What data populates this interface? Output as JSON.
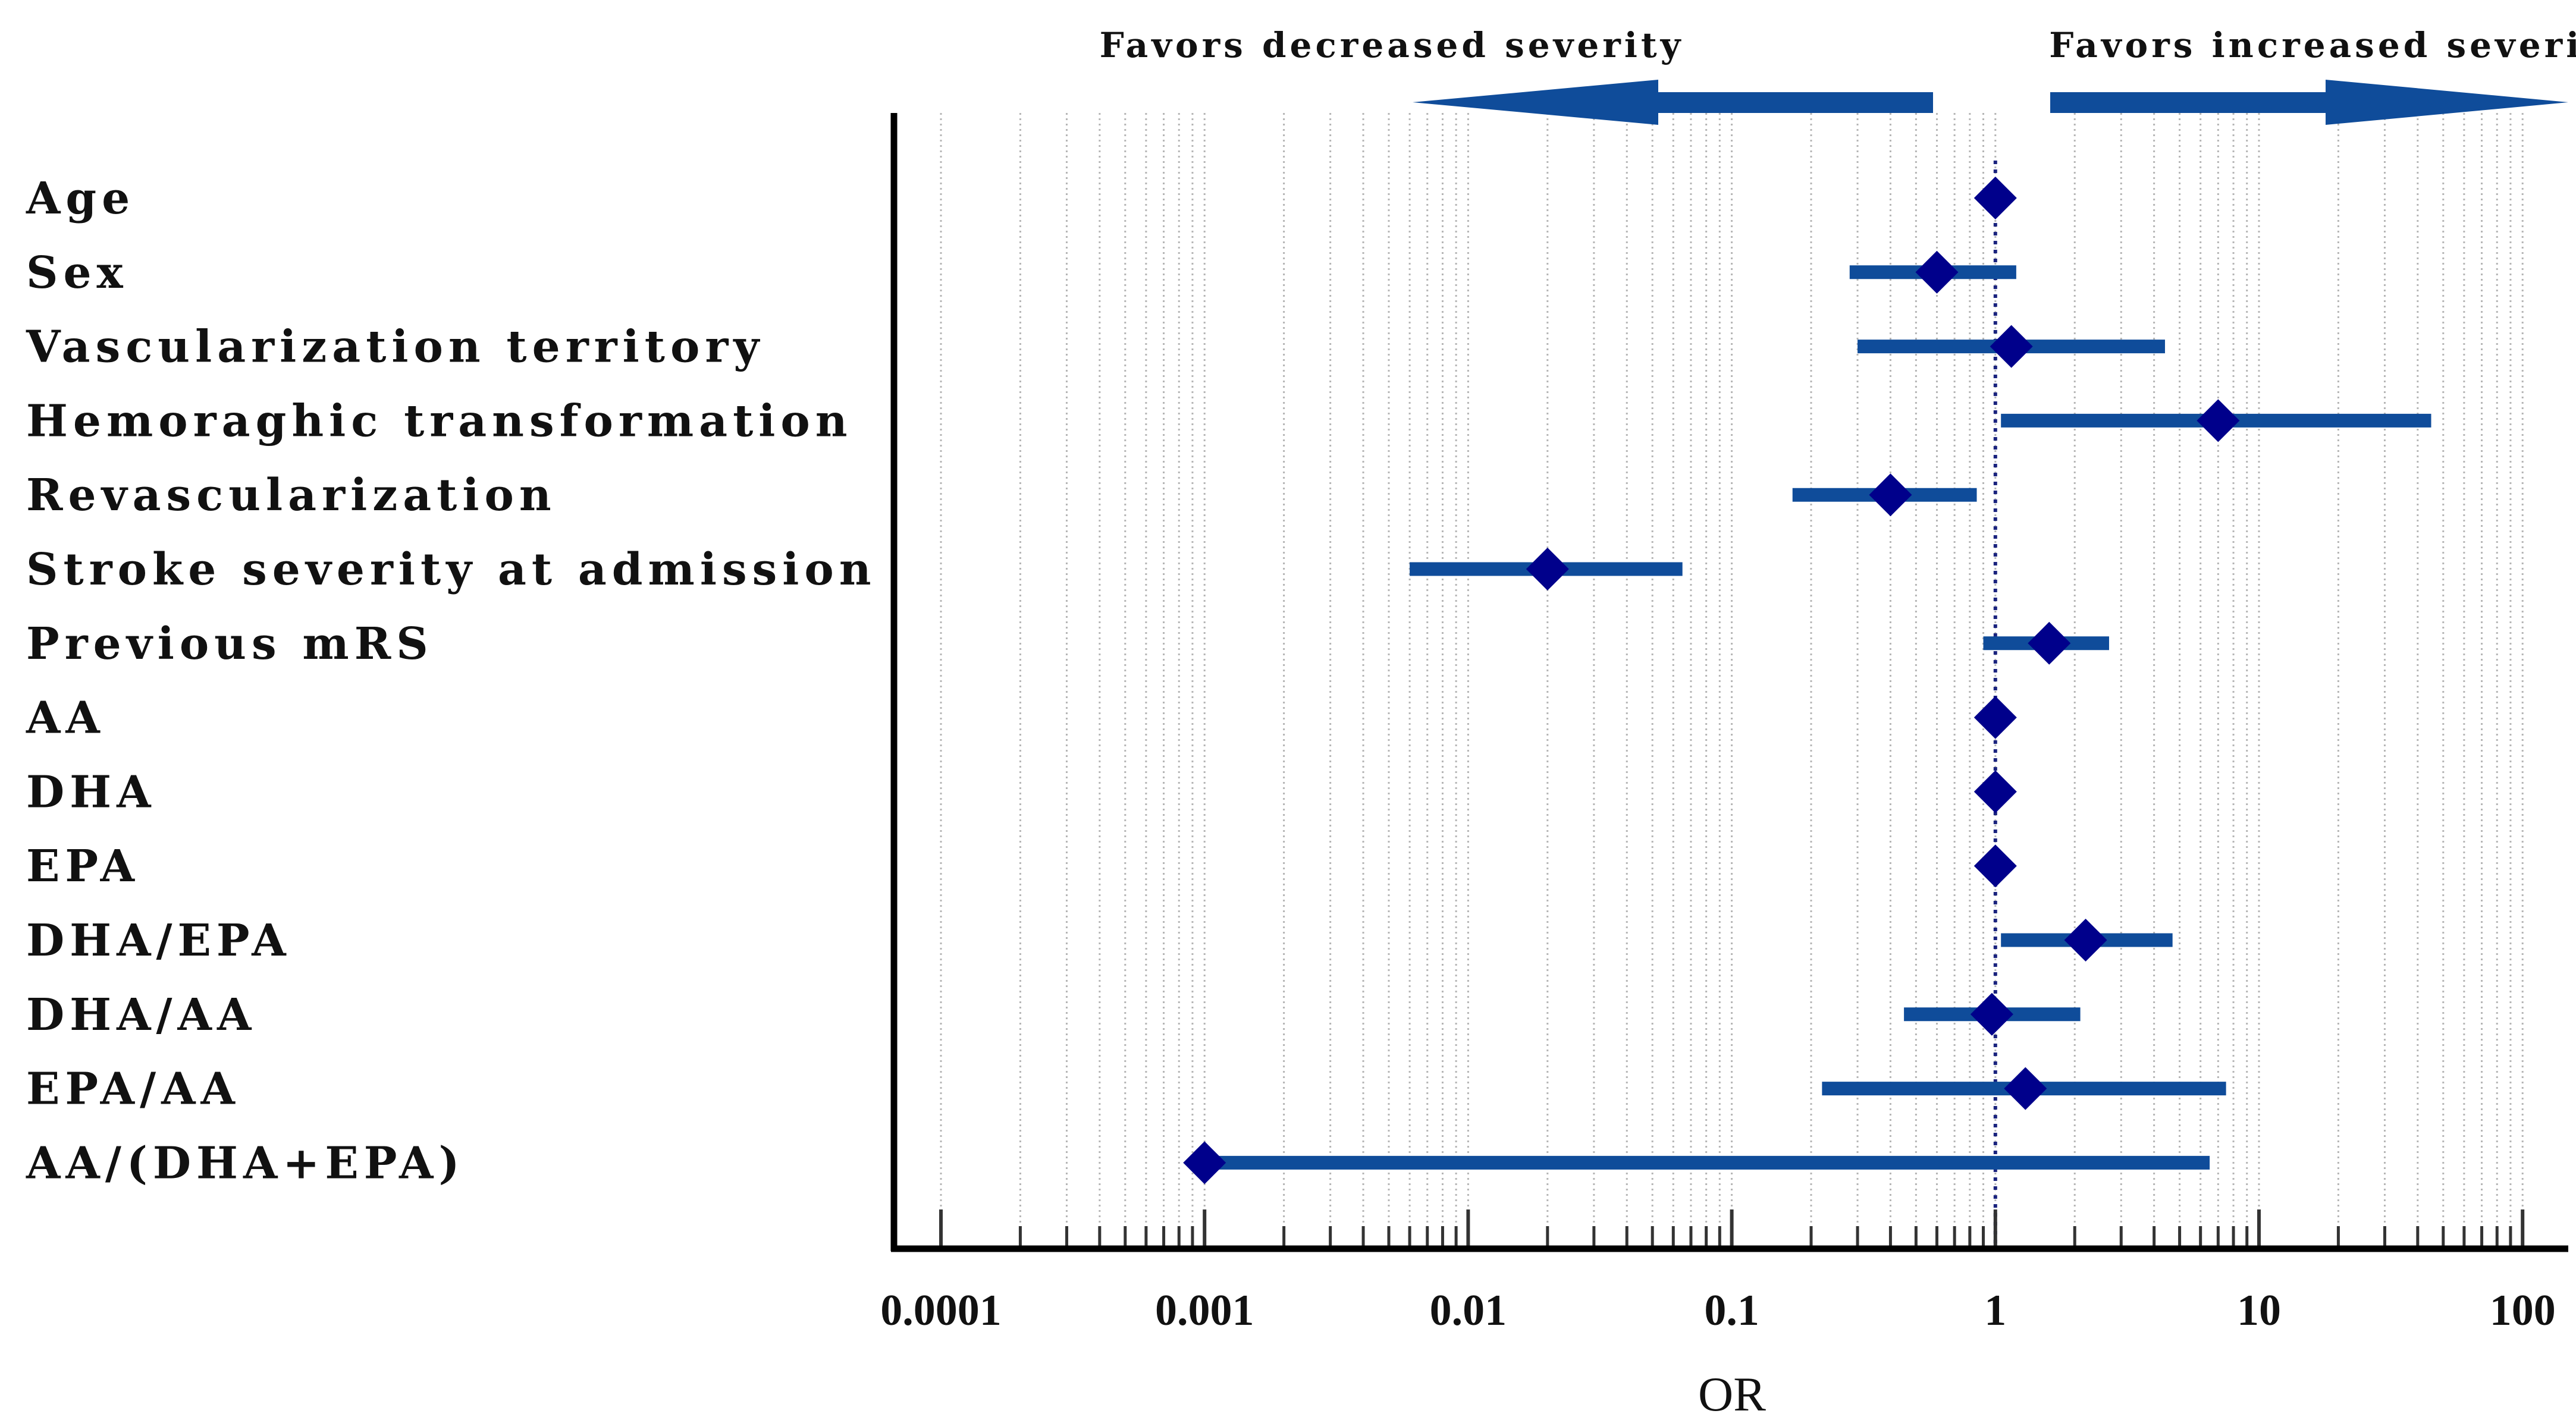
{
  "chart_data": {
    "type": "forest",
    "title": "",
    "xlabel": "OR",
    "ylabel": "",
    "x_scale": "log",
    "xlim": [
      0.0001,
      100
    ],
    "reference_line": 1,
    "grid": true,
    "tick_values": [
      0.0001,
      0.001,
      0.01,
      0.1,
      1,
      10,
      100
    ],
    "tick_labels": [
      "0.0001",
      "0.001",
      "0.01",
      "0.1",
      "1",
      "10",
      "100"
    ],
    "annotations": {
      "left_arrow": "Favors decreased severity",
      "right_arrow": "Favors increased severity"
    },
    "rows": [
      {
        "label": "Age",
        "or": 1.0,
        "ci_low": 1.0,
        "ci_high": 1.0
      },
      {
        "label": "Sex",
        "or": 0.6,
        "ci_low": 0.28,
        "ci_high": 1.2
      },
      {
        "label": "Vascularization territory",
        "or": 1.15,
        "ci_low": 0.3,
        "ci_high": 4.4
      },
      {
        "label": "Hemoraghic transformation",
        "or": 7.0,
        "ci_low": 1.05,
        "ci_high": 45.0
      },
      {
        "label": "Revascularization",
        "or": 0.4,
        "ci_low": 0.17,
        "ci_high": 0.85
      },
      {
        "label": "Stroke severity at admission",
        "or": 0.02,
        "ci_low": 0.006,
        "ci_high": 0.065
      },
      {
        "label": "Previous mRS",
        "or": 1.6,
        "ci_low": 0.9,
        "ci_high": 2.7
      },
      {
        "label": "AA",
        "or": 1.0,
        "ci_low": 1.0,
        "ci_high": 1.0
      },
      {
        "label": "DHA",
        "or": 1.0,
        "ci_low": 1.0,
        "ci_high": 1.0
      },
      {
        "label": "EPA",
        "or": 1.0,
        "ci_low": 1.0,
        "ci_high": 1.0
      },
      {
        "label": "DHA/EPA",
        "or": 2.2,
        "ci_low": 1.05,
        "ci_high": 4.7
      },
      {
        "label": "DHA/AA",
        "or": 0.97,
        "ci_low": 0.45,
        "ci_high": 2.1
      },
      {
        "label": "EPA/AA",
        "or": 1.3,
        "ci_low": 0.22,
        "ci_high": 7.5
      },
      {
        "label": "AA/(DHA+EPA)",
        "or": 0.001,
        "ci_low": 0.001,
        "ci_high": 6.5
      }
    ],
    "colors": {
      "ci_line": "#0f4c9a",
      "marker": "#00008b",
      "arrow": "#0f4c9a",
      "axis": "#000000",
      "grid": "#b5b5b5",
      "reference": "#1a237e"
    }
  }
}
